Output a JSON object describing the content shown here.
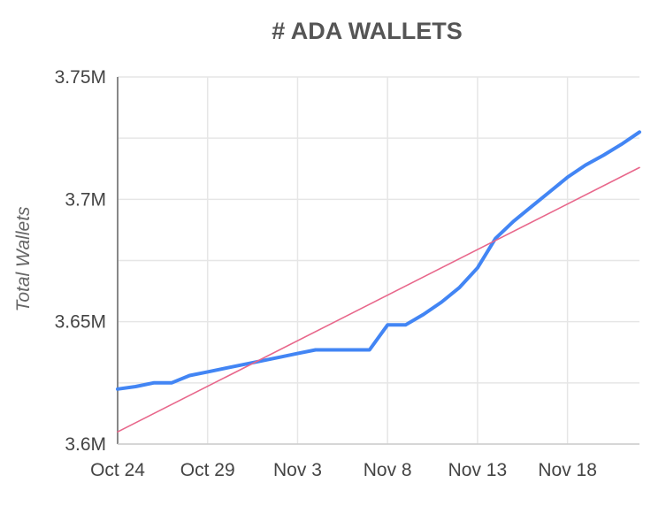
{
  "chart_data": {
    "type": "line",
    "title": "# ADA WALLETS",
    "xlabel": "",
    "ylabel": "Total Wallets",
    "x_ticks": [
      "Oct 24",
      "Oct 29",
      "Nov 3",
      "Nov 8",
      "Nov 13",
      "Nov 18"
    ],
    "y_ticks": [
      "3.6M",
      "3.65M",
      "3.7M",
      "3.75M"
    ],
    "y_tick_values": [
      3600000,
      3650000,
      3700000,
      3750000
    ],
    "ylim": [
      3600000,
      3750000
    ],
    "xlim": [
      "2018-10-24",
      "2018-11-22"
    ],
    "grid": true,
    "series": [
      {
        "color": "#4285F4",
        "x": [
          "2018-10-24",
          "2018-10-25",
          "2018-10-26",
          "2018-10-27",
          "2018-10-28",
          "2018-10-29",
          "2018-10-30",
          "2018-10-31",
          "2018-11-01",
          "2018-11-02",
          "2018-11-03",
          "2018-11-04",
          "2018-11-05",
          "2018-11-06",
          "2018-11-07",
          "2018-11-08",
          "2018-11-09",
          "2018-11-10",
          "2018-11-11",
          "2018-11-12",
          "2018-11-13",
          "2018-11-14",
          "2018-11-15",
          "2018-11-16",
          "2018-11-17",
          "2018-11-18",
          "2018-11-19",
          "2018-11-20",
          "2018-11-21",
          "2018-11-22"
        ],
        "values": [
          3622500,
          3623500,
          3625000,
          3625000,
          3628000,
          3629500,
          3631000,
          3632500,
          3634000,
          3635500,
          3637000,
          3638500,
          3638500,
          3638500,
          3638500,
          3648700,
          3648700,
          3653000,
          3658000,
          3664000,
          3672000,
          3684000,
          3691000,
          3697000,
          3703000,
          3709000,
          3714000,
          3718000,
          3722500,
          3727500
        ]
      },
      {
        "color": "#E8678B",
        "type": "trendline",
        "x": [
          "2018-10-24",
          "2018-11-22"
        ],
        "values": [
          3605000,
          3713000
        ]
      }
    ]
  }
}
